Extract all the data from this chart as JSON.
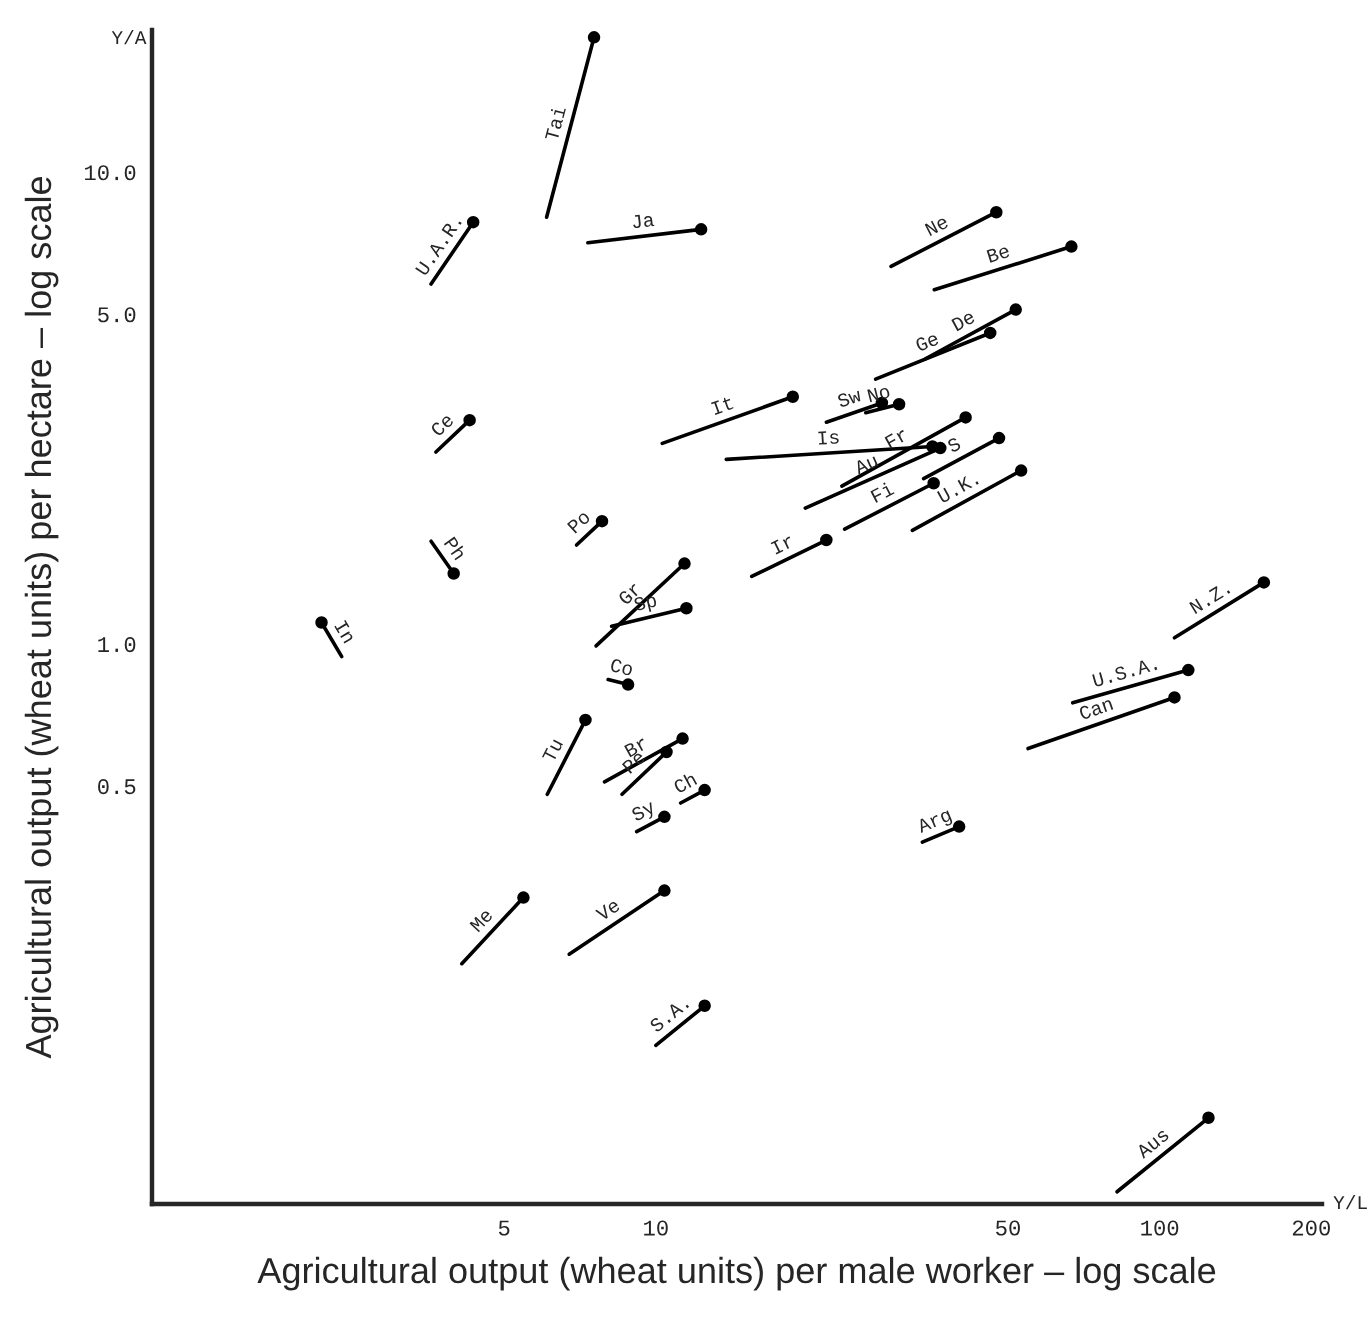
{
  "chart_data": {
    "type": "line",
    "xlabel": "Agricultural output (wheat units) per male worker – log scale",
    "ylabel": "Agricultural output (wheat units) per hectare – log scale",
    "annotations": [
      "Y/A",
      "Y/L"
    ],
    "log": "xy",
    "grid": false,
    "marker": "circle",
    "line_style": "solid",
    "xlim": [
      1,
      210
    ],
    "ylim": [
      0.065,
      20
    ],
    "xticks": [
      5,
      10,
      50,
      100,
      200
    ],
    "yticks": [
      {
        "value": 0.5,
        "label": "0.5"
      },
      {
        "value": 1,
        "label": "1.0"
      },
      {
        "value": 5,
        "label": "5.0"
      },
      {
        "value": 10,
        "label": "10.0"
      }
    ],
    "series": [
      {
        "name": "Tai",
        "color": "#000000",
        "x": [
          6.07,
          7.54
        ],
        "values": [
          8.02,
          19.3
        ]
      },
      {
        "name": "U.A.R.",
        "color": "#000000",
        "x": [
          3.58,
          4.34
        ],
        "values": [
          5.79,
          7.83
        ]
      },
      {
        "name": "Ja",
        "color": "#000000",
        "x": [
          7.33,
          12.3
        ],
        "values": [
          7.08,
          7.56
        ]
      },
      {
        "name": "Ne",
        "color": "#000000",
        "x": [
          29.3,
          47.4
        ],
        "values": [
          6.31,
          8.22
        ]
      },
      {
        "name": "Be",
        "color": "#000000",
        "x": [
          35.7,
          66.8
        ],
        "values": [
          5.63,
          6.95
        ]
      },
      {
        "name": "Ge",
        "color": "#000000",
        "x": [
          27.3,
          46.1
        ],
        "values": [
          3.64,
          4.56
        ]
      },
      {
        "name": "De",
        "color": "#000000",
        "x": [
          34.3,
          51.8
        ],
        "values": [
          4.02,
          5.11
        ]
      },
      {
        "name": "It",
        "color": "#000000",
        "x": [
          10.3,
          18.7
        ],
        "values": [
          2.66,
          3.34
        ]
      },
      {
        "name": "Sw",
        "color": "#000000",
        "x": [
          21.8,
          28.1
        ],
        "values": [
          2.95,
          3.24
        ]
      },
      {
        "name": "No",
        "color": "#000000",
        "x": [
          26.1,
          30.4
        ],
        "values": [
          3.09,
          3.22
        ]
      },
      {
        "name": "Au",
        "color": "#000000",
        "x": [
          19.8,
          36.7
        ],
        "values": [
          1.94,
          2.6
        ]
      },
      {
        "name": "Fr",
        "color": "#000000",
        "x": [
          23.4,
          41.2
        ],
        "values": [
          2.16,
          3.02
        ]
      },
      {
        "name": "Is",
        "color": "#000000",
        "x": [
          13.8,
          35.4
        ],
        "values": [
          2.46,
          2.62
        ]
      },
      {
        "name": "S",
        "color": "#000000",
        "x": [
          34.0,
          48.0
        ],
        "values": [
          2.24,
          2.73
        ]
      },
      {
        "name": "Fi",
        "color": "#000000",
        "x": [
          23.7,
          35.6
        ],
        "values": [
          1.75,
          2.19
        ]
      },
      {
        "name": "U.K.",
        "color": "#000000",
        "x": [
          32.3,
          53.1
        ],
        "values": [
          1.74,
          2.33
        ]
      },
      {
        "name": "Ir",
        "color": "#000000",
        "x": [
          15.5,
          21.8
        ],
        "values": [
          1.39,
          1.66
        ]
      },
      {
        "name": "Ce",
        "color": "#000000",
        "x": [
          3.66,
          4.27
        ],
        "values": [
          2.55,
          2.98
        ]
      },
      {
        "name": "Po",
        "color": "#000000",
        "x": [
          6.96,
          7.82
        ],
        "values": [
          1.62,
          1.82
        ]
      },
      {
        "name": "Ph",
        "color": "#000000",
        "x": [
          3.58,
          3.97
        ],
        "values": [
          1.65,
          1.41
        ]
      },
      {
        "name": "In",
        "color": "#000000",
        "x": [
          2.38,
          2.17
        ],
        "values": [
          0.94,
          1.11
        ]
      },
      {
        "name": "Gr",
        "color": "#000000",
        "x": [
          7.61,
          11.4
        ],
        "values": [
          0.99,
          1.48
        ]
      },
      {
        "name": "Sp",
        "color": "#000000",
        "x": [
          8.17,
          11.5
        ],
        "values": [
          1.09,
          1.19
        ]
      },
      {
        "name": "Co",
        "color": "#000000",
        "x": [
          8.04,
          8.81
        ],
        "values": [
          0.84,
          0.82
        ]
      },
      {
        "name": "Tu",
        "color": "#000000",
        "x": [
          6.09,
          7.25
        ],
        "values": [
          0.48,
          0.69
        ]
      },
      {
        "name": "Br",
        "color": "#000000",
        "x": [
          7.91,
          11.3
        ],
        "values": [
          0.51,
          0.63
        ]
      },
      {
        "name": "Pe",
        "color": "#000000",
        "x": [
          8.57,
          10.5
        ],
        "values": [
          0.48,
          0.59
        ]
      },
      {
        "name": "Ch",
        "color": "#000000",
        "x": [
          11.2,
          12.5
        ],
        "values": [
          0.46,
          0.49
        ]
      },
      {
        "name": "Sy",
        "color": "#000000",
        "x": [
          9.16,
          10.4
        ],
        "values": [
          0.4,
          0.43
        ]
      },
      {
        "name": "N.Z.",
        "color": "#000000",
        "x": [
          107,
          161
        ],
        "values": [
          1.03,
          1.35
        ]
      },
      {
        "name": "U.S.A.",
        "color": "#000000",
        "x": [
          67.2,
          114
        ],
        "values": [
          0.75,
          0.88
        ]
      },
      {
        "name": "Can",
        "color": "#000000",
        "x": [
          54.8,
          107
        ],
        "values": [
          0.6,
          0.77
        ]
      },
      {
        "name": "Arg",
        "color": "#000000",
        "x": [
          33.8,
          40.0
        ],
        "values": [
          0.38,
          0.41
        ]
      },
      {
        "name": "Me",
        "color": "#000000",
        "x": [
          4.12,
          5.46
        ],
        "values": [
          0.21,
          0.29
        ]
      },
      {
        "name": "Ve",
        "color": "#000000",
        "x": [
          6.73,
          10.4
        ],
        "values": [
          0.22,
          0.3
        ]
      },
      {
        "name": "S.A.",
        "color": "#000000",
        "x": [
          10.0,
          12.5
        ],
        "values": [
          0.141,
          0.171
        ]
      },
      {
        "name": "Aus",
        "color": "#000000",
        "x": [
          82.3,
          125
        ],
        "values": [
          0.069,
          0.099
        ]
      }
    ]
  }
}
